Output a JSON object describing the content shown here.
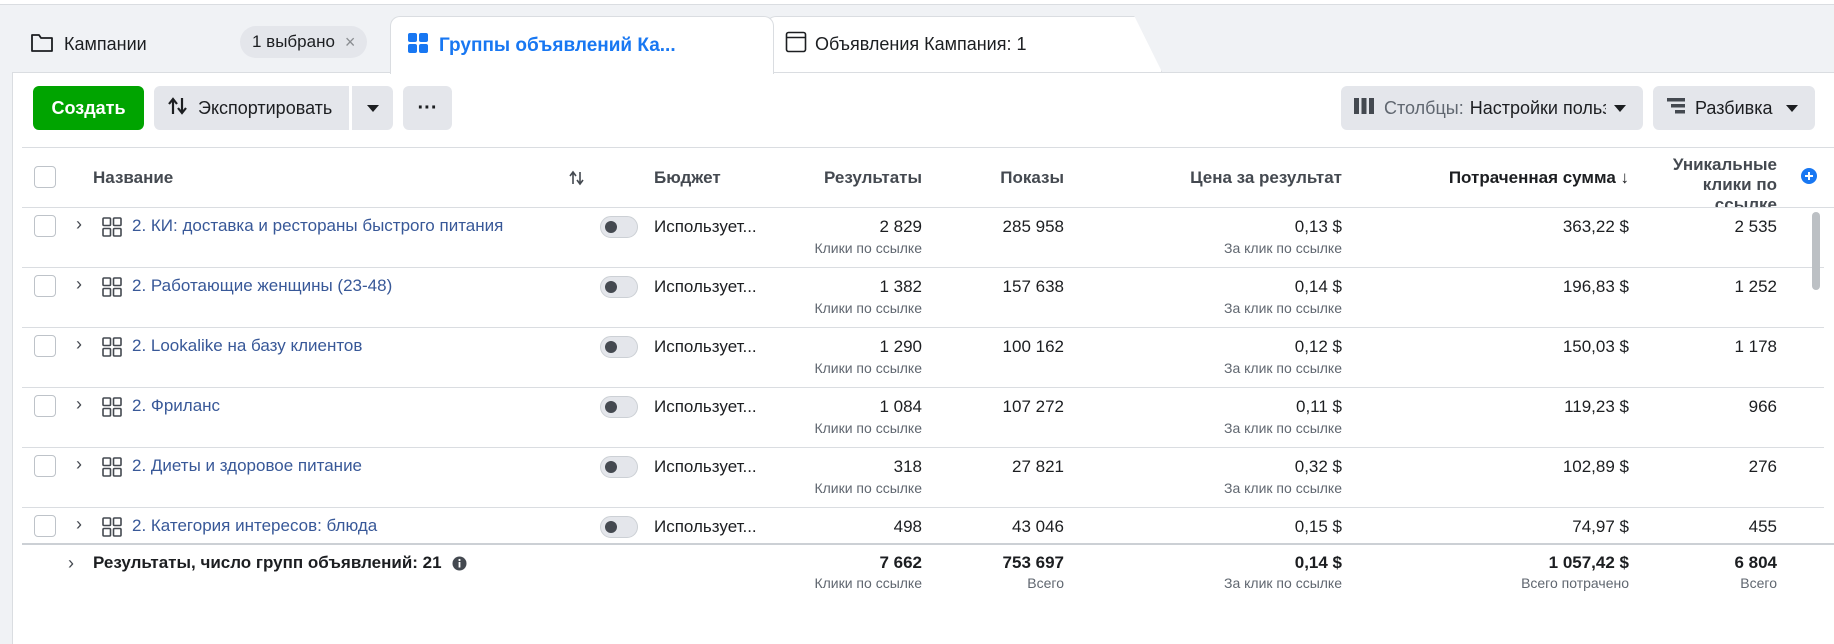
{
  "tabs": {
    "campaigns": {
      "label": "Кампании",
      "selected_badge": "1 выбрано",
      "close": "×"
    },
    "adsets": {
      "label": "Группы объявлений Ка..."
    },
    "ads": {
      "label": "Объявления Кампания: 1"
    }
  },
  "toolbar": {
    "create_label": "Создать",
    "export_label": "Экспортировать",
    "more_label": "···",
    "columns_prefix": "Столбцы:",
    "columns_value": "Настройки пользователя",
    "breakdown_label": "Разбивка"
  },
  "table": {
    "headers": {
      "name": "Название",
      "budget": "Бюджет",
      "results": "Результаты",
      "impressions": "Показы",
      "cost_per_result": "Цена за результат",
      "amount_spent": "Потраченная сумма ↓",
      "unique_clicks_l1": "Уникальные",
      "unique_clicks_l2": "клики по",
      "unique_clicks_l3": "ссылке"
    },
    "rows": [
      {
        "name": "2. КИ: доставка и рестораны быстрого питания",
        "budget": "Использует...",
        "results": "2 829",
        "results_sub": "Клики по ссылке",
        "impressions": "285 958",
        "cpr": "0,13 $",
        "cpr_sub": "За клик по ссылке",
        "spent": "363,22 $",
        "unique": "2 535"
      },
      {
        "name": "2. Работающие женщины (23-48)",
        "budget": "Использует...",
        "results": "1 382",
        "results_sub": "Клики по ссылке",
        "impressions": "157 638",
        "cpr": "0,14 $",
        "cpr_sub": "За клик по ссылке",
        "spent": "196,83 $",
        "unique": "1 252"
      },
      {
        "name": "2. Lookalike на базу клиентов",
        "budget": "Использует...",
        "results": "1 290",
        "results_sub": "Клики по ссылке",
        "impressions": "100 162",
        "cpr": "0,12 $",
        "cpr_sub": "За клик по ссылке",
        "spent": "150,03 $",
        "unique": "1 178"
      },
      {
        "name": "2. Фриланс",
        "budget": "Использует...",
        "results": "1 084",
        "results_sub": "Клики по ссылке",
        "impressions": "107 272",
        "cpr": "0,11 $",
        "cpr_sub": "За клик по ссылке",
        "spent": "119,23 $",
        "unique": "966"
      },
      {
        "name": "2. Диеты и здоровое питание",
        "budget": "Использует...",
        "results": "318",
        "results_sub": "Клики по ссылке",
        "impressions": "27 821",
        "cpr": "0,32 $",
        "cpr_sub": "За клик по ссылке",
        "spent": "102,89 $",
        "unique": "276"
      },
      {
        "name": "2. Категория интересов: блюда",
        "budget": "Использует...",
        "results": "498",
        "results_sub": "",
        "impressions": "43 046",
        "cpr": "0,15 $",
        "cpr_sub": "",
        "spent": "74,97 $",
        "unique": "455"
      }
    ],
    "totals": {
      "label": "Результаты, число групп объявлений: 21",
      "results": "7 662",
      "results_sub": "Клики по ссылке",
      "impressions": "753 697",
      "impressions_sub": "Всего",
      "cpr": "0,14 $",
      "cpr_sub": "За клик по ссылке",
      "spent": "1 057,42 $",
      "spent_sub": "Всего потрачено",
      "unique": "6 804",
      "unique_sub": "Всего"
    }
  },
  "colors": {
    "accent": "#1877f2",
    "create": "#00a400",
    "link": "#385898"
  }
}
